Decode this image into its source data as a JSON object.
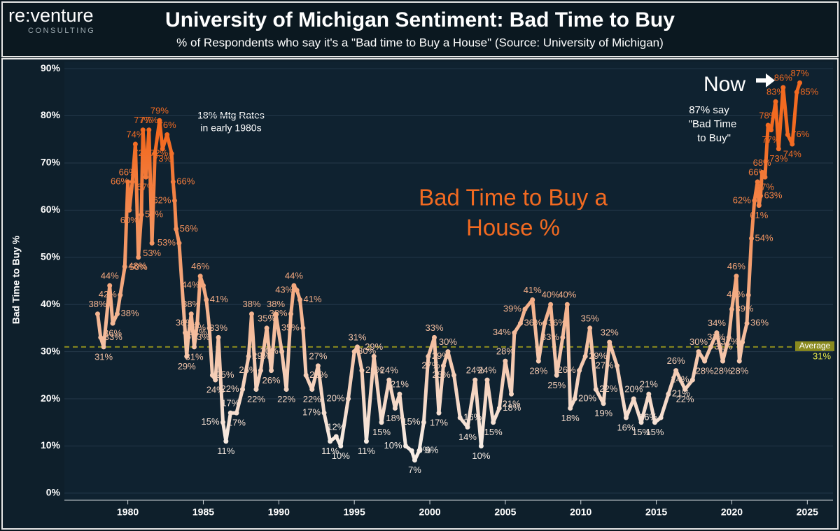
{
  "header": {
    "logo": "re:venture",
    "logo_sub": "CONSULTING"
  },
  "chart_data": {
    "type": "line",
    "title": "University of Michigan Sentiment: Bad Time to Buy",
    "subtitle": "% of Respondents who say it's a \"Bad time to Buy a House\" (Source: University of Michigan)",
    "ylabel": "Bad Time to Buy %",
    "annotations": {
      "rates": [
        "18% Mtg Rates",
        "in early 1980s"
      ],
      "center": [
        "Bad Time to Buy a",
        "House %"
      ],
      "now": "Now",
      "now_note": [
        "87% say",
        "\"Bad Time",
        "to Buy\""
      ]
    },
    "average": {
      "value": 31,
      "label": "Average",
      "value_label": "31%",
      "color": "#8a8a1e"
    },
    "xlim": [
      1975.8,
      2026.7
    ],
    "xticks": [
      1980,
      1985,
      1990,
      1995,
      2000,
      2005,
      2010,
      2015,
      2020,
      2025
    ],
    "ylim": [
      -1.5,
      91.5
    ],
    "yticks": [
      {
        "value": 0,
        "label": "0%"
      },
      {
        "value": 10,
        "label": "10%"
      },
      {
        "value": 20,
        "label": "20%"
      },
      {
        "value": 30,
        "label": "30%"
      },
      {
        "value": 40,
        "label": "40%"
      },
      {
        "value": 50,
        "label": "50%"
      },
      {
        "value": 60,
        "label": "60%"
      },
      {
        "value": 70,
        "label": "70%"
      },
      {
        "value": 80,
        "label": "80%"
      },
      {
        "value": 90,
        "label": "90%"
      }
    ],
    "grid": true,
    "x": [
      1978.0,
      1978.2,
      1978.4,
      1978.8,
      1979.0,
      1979.3,
      1979.5,
      1979.8,
      1980.0,
      1980.1,
      1980.3,
      1980.5,
      1980.7,
      1980.9,
      1981.0,
      1981.2,
      1981.4,
      1981.6,
      1981.8,
      1982.1,
      1982.3,
      1982.6,
      1982.9,
      1983.0,
      1983.1,
      1983.2,
      1983.4,
      1983.8,
      1983.9,
      1984.0,
      1984.2,
      1984.4,
      1984.6,
      1984.8,
      1985.0,
      1985.2,
      1985.4,
      1985.6,
      1985.8,
      1986.0,
      1986.3,
      1986.5,
      1986.8,
      1987.2,
      1987.6,
      1988.0,
      1988.2,
      1988.5,
      1988.8,
      1989.2,
      1989.5,
      1989.8,
      1990.2,
      1990.5,
      1990.8,
      1991.0,
      1991.2,
      1991.4,
      1991.6,
      1991.8,
      1992.2,
      1992.6,
      1993.0,
      1993.4,
      1993.8,
      1994.1,
      1994.6,
      1995.0,
      1995.2,
      1995.5,
      1995.8,
      1996.3,
      1996.8,
      1997.3,
      1997.7,
      1998.0,
      1998.4,
      1998.8,
      1999.0,
      1999.3,
      1999.6,
      1999.9,
      2000.3,
      2000.6,
      2000.9,
      2001.2,
      2001.6,
      2002.0,
      2002.5,
      2003.0,
      2003.4,
      2003.8,
      2004.2,
      2004.6,
      2005.0,
      2005.4,
      2005.6,
      2006.0,
      2006.3,
      2006.8,
      2007.2,
      2007.6,
      2008.0,
      2008.4,
      2008.8,
      2009.1,
      2009.3,
      2009.6,
      2009.9,
      2010.3,
      2010.6,
      2011.0,
      2011.5,
      2011.9,
      2012.4,
      2013.0,
      2013.5,
      2014.0,
      2014.5,
      2014.9,
      2015.3,
      2015.8,
      2016.3,
      2016.9,
      2017.4,
      2017.8,
      2018.2,
      2018.6,
      2019.0,
      2019.4,
      2019.8,
      2020.0,
      2020.3,
      2020.5,
      2020.7,
      2021.0,
      2021.1,
      2021.3,
      2021.5,
      2021.7,
      2021.8,
      2021.9,
      2022.0,
      2022.2,
      2022.4,
      2022.6,
      2022.9,
      2023.1,
      2023.4,
      2023.7,
      2024.0,
      2024.3,
      2024.5
    ],
    "series": [
      {
        "color_low": "#f6ece4",
        "color_high": "#f26a21",
        "values": [
          38,
          33,
          31,
          44,
          36,
          38,
          42,
          48,
          66,
          60,
          66,
          74,
          50,
          59,
          77,
          67,
          77,
          53,
          72,
          79,
          73,
          76,
          72,
          66,
          62,
          56,
          53,
          34,
          29,
          33,
          38,
          31,
          36,
          46,
          44,
          41,
          35,
          25,
          24,
          33,
          15,
          11,
          17,
          17,
          22,
          29,
          38,
          22,
          26,
          35,
          26,
          38,
          30,
          22,
          38,
          44,
          43,
          41,
          35,
          25,
          22,
          27,
          17,
          11,
          12,
          10,
          20,
          30,
          31,
          26,
          11,
          29,
          15,
          24,
          18,
          21,
          10,
          9,
          7,
          9,
          15,
          29,
          33,
          17,
          27,
          30,
          25,
          16,
          14,
          24,
          10,
          24,
          15,
          18,
          28,
          21,
          34,
          36,
          39,
          41,
          28,
          36,
          40,
          25,
          33,
          40,
          18,
          20,
          26,
          29,
          35,
          22,
          19,
          32,
          27,
          16,
          20,
          15,
          21,
          15,
          16,
          21,
          26,
          22,
          24,
          30,
          28,
          31,
          34,
          28,
          33,
          39,
          46,
          28,
          32,
          36,
          42,
          54,
          62,
          66,
          61,
          63,
          68,
          67,
          78,
          77,
          83,
          73,
          86,
          76,
          74,
          85,
          87
        ],
        "value_labels": [
          "38%",
          "33%",
          "31%",
          "44%",
          "36%",
          "38%",
          "42%",
          "48%",
          "66%",
          "60%",
          "66%",
          "74%",
          "50%",
          "59%",
          "77%",
          "67%",
          "77%",
          "53%",
          "72%",
          "79%",
          "73%",
          "76%",
          "72%",
          "66%",
          "62%",
          "56%",
          "53%",
          "34%",
          "29%",
          "33%",
          "38%",
          "31%",
          "36%",
          "46%",
          "44%",
          "41%",
          "35%",
          "25%",
          "24%",
          "33%",
          "15%",
          "11%",
          "17%",
          "17%",
          "22%",
          "29%",
          "38%",
          "22%",
          "26%",
          "35%",
          "26%",
          "38%",
          "30%",
          "22%",
          "38%",
          "44%",
          "43%",
          "41%",
          "35%",
          "25%",
          "22%",
          "27%",
          "17%",
          "11%",
          "12%",
          "10%",
          "20%",
          "30%",
          "31%",
          "26%",
          "11%",
          "29%",
          "15%",
          "24%",
          "18%",
          "21%",
          "10%",
          "9%",
          "7%",
          "9%",
          "15%",
          "29%",
          "33%",
          "17%",
          "27%",
          "30%",
          "25%",
          "16%",
          "14%",
          "24%",
          "10%",
          "24%",
          "15%",
          "18%",
          "28%",
          "21%",
          "34%",
          "36%",
          "39%",
          "41%",
          "28%",
          "36%",
          "40%",
          "25%",
          "33%",
          "40%",
          "18%",
          "20%",
          "26%",
          "29%",
          "35%",
          "22%",
          "19%",
          "32%",
          "27%",
          "16%",
          "20%",
          "15%",
          "21%",
          "15%",
          "16%",
          "21%",
          "26%",
          "22%",
          "24%",
          "30%",
          "28%",
          "31%",
          "34%",
          "28%",
          "33%",
          "39%",
          "46%",
          "28%",
          "32%",
          "36%",
          "42%",
          "54%",
          "62%",
          "66%",
          "61%",
          "63%",
          "68%",
          "67%",
          "78%",
          "77%",
          "83%",
          "73%",
          "86%",
          "76%",
          "74%",
          "85%",
          "87%"
        ]
      }
    ]
  }
}
